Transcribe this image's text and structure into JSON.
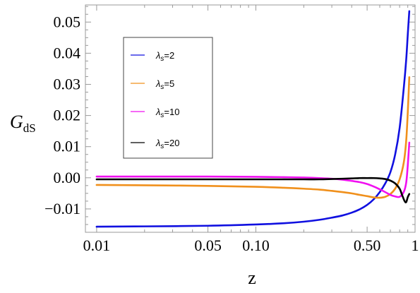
{
  "chart_data": {
    "type": "line",
    "title": "",
    "xlabel": "z",
    "ylabel_main": "G",
    "ylabel_sub": "dS",
    "xscale": "log",
    "xlim": [
      0.0085,
      1.0
    ],
    "ylim": [
      -0.0175,
      0.0555
    ],
    "x_ticks": [
      {
        "value": 0.01,
        "label": "0.01"
      },
      {
        "value": 0.05,
        "label": "0.05"
      },
      {
        "value": 0.1,
        "label": "0.10"
      },
      {
        "value": 0.5,
        "label": "0.50"
      },
      {
        "value": 1.0,
        "label": "1"
      }
    ],
    "y_ticks": [
      {
        "value": -0.01,
        "label": "−0.01"
      },
      {
        "value": 0.0,
        "label": "0.00"
      },
      {
        "value": 0.01,
        "label": "0.01"
      },
      {
        "value": 0.02,
        "label": "0.02"
      },
      {
        "value": 0.03,
        "label": "0.03"
      },
      {
        "value": 0.04,
        "label": "0.04"
      },
      {
        "value": 0.05,
        "label": "0.05"
      }
    ],
    "legend_position": "top-left",
    "series": [
      {
        "name": "λs=2",
        "legend_main": "λ",
        "legend_sub": "s",
        "legend_rest": "=2",
        "color": "#1010e0",
        "x": [
          0.01,
          0.02,
          0.05,
          0.1,
          0.15,
          0.2,
          0.25,
          0.3,
          0.35,
          0.4,
          0.45,
          0.5,
          0.55,
          0.6,
          0.65,
          0.7,
          0.75,
          0.8,
          0.85,
          0.88,
          0.9,
          0.92
        ],
        "y": [
          -0.0157,
          -0.0156,
          -0.0154,
          -0.015,
          -0.0146,
          -0.0141,
          -0.0135,
          -0.0128,
          -0.0121,
          -0.0112,
          -0.0101,
          -0.0087,
          -0.0069,
          -0.0046,
          -0.0018,
          0.0018,
          0.0075,
          0.016,
          0.029,
          0.038,
          0.046,
          0.0535
        ]
      },
      {
        "name": "λs=5",
        "legend_main": "λ",
        "legend_sub": "s",
        "legend_rest": "=5",
        "color": "#f0901c",
        "x": [
          0.01,
          0.02,
          0.05,
          0.1,
          0.15,
          0.2,
          0.25,
          0.3,
          0.35,
          0.4,
          0.45,
          0.5,
          0.55,
          0.6,
          0.65,
          0.7,
          0.75,
          0.8,
          0.85,
          0.88,
          0.9,
          0.92
        ],
        "y": [
          -0.0023,
          -0.0024,
          -0.0026,
          -0.0029,
          -0.0032,
          -0.0035,
          -0.0038,
          -0.0042,
          -0.0046,
          -0.005,
          -0.0055,
          -0.0059,
          -0.0063,
          -0.0064,
          -0.0061,
          -0.0052,
          -0.0035,
          -0.0005,
          0.005,
          0.012,
          0.021,
          0.0323
        ]
      },
      {
        "name": "λs=10",
        "legend_main": "λ",
        "legend_sub": "s",
        "legend_rest": "=10",
        "color": "#f010f0",
        "x": [
          0.01,
          0.02,
          0.05,
          0.1,
          0.15,
          0.2,
          0.25,
          0.3,
          0.35,
          0.4,
          0.45,
          0.5,
          0.55,
          0.6,
          0.65,
          0.7,
          0.75,
          0.8,
          0.85,
          0.88,
          0.9,
          0.92
        ],
        "y": [
          0.0004,
          0.0004,
          0.0004,
          0.0003,
          0.0002,
          0.0001,
          -0.0001,
          -0.0003,
          -0.0006,
          -0.001,
          -0.0014,
          -0.002,
          -0.0028,
          -0.0037,
          -0.0046,
          -0.0055,
          -0.006,
          -0.0061,
          -0.0045,
          -0.0015,
          0.004,
          0.0113
        ]
      },
      {
        "name": "λs=20",
        "legend_main": "λ",
        "legend_sub": "s",
        "legend_rest": "=20",
        "color": "#000000",
        "x": [
          0.01,
          0.02,
          0.05,
          0.1,
          0.15,
          0.2,
          0.25,
          0.3,
          0.35,
          0.4,
          0.45,
          0.5,
          0.55,
          0.6,
          0.65,
          0.7,
          0.75,
          0.8,
          0.83,
          0.86,
          0.88,
          0.9,
          0.92
        ],
        "y": [
          -0.0005,
          -0.0005,
          -0.0005,
          -0.0005,
          -0.0005,
          -0.0005,
          -0.0005,
          -0.0004,
          -0.0003,
          -0.0002,
          -0.0001,
          -0.0001,
          -0.0001,
          -0.0002,
          -0.0004,
          -0.0009,
          -0.0018,
          -0.0035,
          -0.0056,
          -0.0075,
          -0.0078,
          -0.0062,
          -0.0052
        ]
      }
    ]
  }
}
